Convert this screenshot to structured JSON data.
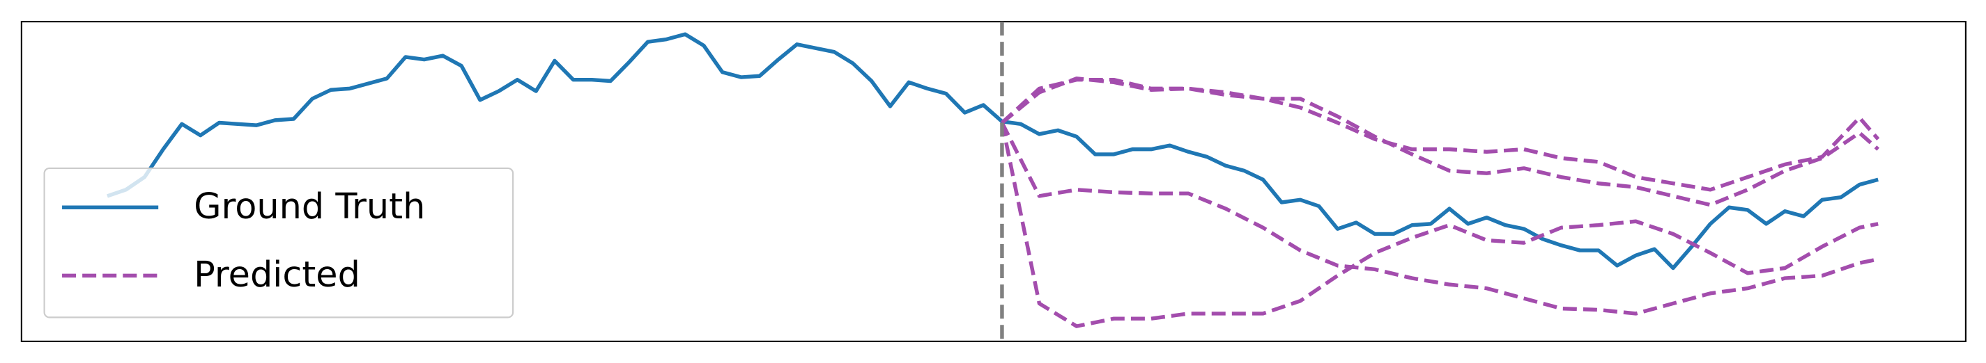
{
  "chart_data": {
    "type": "line",
    "xlim": [
      -4.6,
      99.7
    ],
    "ylim": [
      0,
      253
    ],
    "vline": 48,
    "vline_color": "#808080",
    "legend": "lower left",
    "series": [
      {
        "name": "Ground Truth",
        "color": "#1f77b4",
        "dashed": false,
        "x": [
          0,
          1,
          2,
          3,
          4,
          5,
          6,
          7,
          8,
          9,
          10,
          11,
          12,
          13,
          14,
          15,
          16,
          17,
          18,
          19,
          20,
          21,
          22,
          23,
          24,
          25,
          26,
          27,
          28,
          29,
          30,
          31,
          32,
          33,
          34,
          35,
          36,
          37,
          38,
          39,
          40,
          41,
          42,
          43,
          44,
          45,
          46,
          47,
          48,
          49,
          50,
          51,
          52,
          53,
          54,
          55,
          56,
          57,
          58,
          59,
          60,
          61,
          62,
          63,
          64,
          65,
          66,
          67,
          68,
          69,
          70,
          71,
          72,
          73,
          74,
          75,
          76,
          77,
          78,
          79,
          80,
          81,
          82,
          83,
          84,
          85,
          86,
          87,
          88,
          89,
          90,
          91,
          92,
          93,
          94,
          95
        ],
        "values": [
          115,
          120,
          130,
          152,
          172,
          163,
          173,
          172,
          171,
          175,
          176,
          192,
          199,
          200,
          204,
          208,
          225,
          223,
          226,
          218,
          191,
          198,
          207,
          198,
          222,
          207,
          207,
          206,
          221,
          237,
          239,
          243,
          234,
          213,
          209,
          210,
          223,
          235,
          232,
          229,
          220,
          206,
          186,
          205,
          200,
          196,
          181,
          187,
          174,
          172,
          164,
          167,
          162,
          148,
          148,
          152,
          152,
          155,
          150,
          146,
          139,
          135,
          128,
          110,
          112,
          107,
          89,
          94,
          85,
          85,
          92,
          93,
          105,
          93,
          98,
          92,
          89,
          81,
          76,
          72,
          72,
          60,
          68,
          73,
          58,
          75,
          93,
          106,
          104,
          93,
          103,
          99,
          112,
          114,
          124,
          128
        ]
      },
      {
        "name": "Predicted",
        "color": "#a34dad",
        "dashed": true,
        "x": [
          48,
          50,
          52,
          54,
          56,
          58,
          60,
          62,
          64,
          66,
          68,
          70,
          72,
          74,
          76,
          78,
          80,
          82,
          84,
          86,
          88,
          90,
          92,
          94,
          95
        ],
        "values": [
          173,
          197,
          208,
          205,
          199,
          200,
          195,
          192,
          192,
          178,
          162,
          148,
          135,
          133,
          137,
          130,
          125,
          122,
          115,
          108,
          120,
          135,
          145,
          165,
          152
        ]
      },
      {
        "color": "#a34dad",
        "dashed": true,
        "x": [
          48,
          50,
          52,
          54,
          56,
          58,
          60,
          62,
          64,
          66,
          68,
          70,
          72,
          74,
          76,
          78,
          80,
          82,
          84,
          86,
          88,
          90,
          92,
          94,
          95
        ],
        "values": [
          173,
          200,
          207,
          207,
          200,
          200,
          197,
          192,
          185,
          173,
          160,
          152,
          152,
          150,
          152,
          145,
          142,
          130,
          125,
          120,
          130,
          140,
          146,
          177,
          160
        ]
      },
      {
        "color": "#a34dad",
        "dashed": true,
        "x": [
          48,
          50,
          52,
          54,
          56,
          58,
          60,
          62,
          64,
          66,
          68,
          70,
          72,
          74,
          76,
          78,
          80,
          82,
          84,
          86,
          88,
          90,
          92,
          94,
          95
        ],
        "values": [
          173,
          115,
          120,
          118,
          117,
          117,
          105,
          90,
          72,
          60,
          57,
          50,
          45,
          42,
          34,
          26,
          25,
          22,
          30,
          38,
          42,
          50,
          52,
          62,
          65
        ]
      },
      {
        "color": "#a34dad",
        "dashed": true,
        "x": [
          48,
          50,
          52,
          54,
          56,
          58,
          60,
          62,
          64,
          66,
          68,
          70,
          72,
          74,
          76,
          78,
          80,
          82,
          84,
          86,
          88,
          90,
          92,
          94,
          95
        ],
        "values": [
          173,
          30,
          12,
          18,
          18,
          22,
          22,
          22,
          32,
          52,
          70,
          82,
          92,
          80,
          78,
          90,
          92,
          95,
          85,
          70,
          54,
          58,
          75,
          90,
          93
        ]
      }
    ]
  }
}
